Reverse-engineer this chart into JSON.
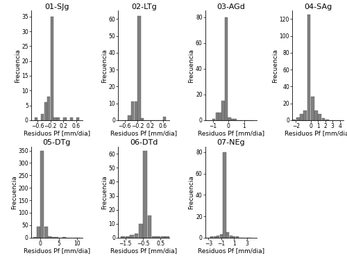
{
  "panels": [
    {
      "title": "01-SJg",
      "xlim": [
        -0.8,
        0.8
      ],
      "ylim": [
        0,
        37
      ],
      "yticks": [
        0,
        5,
        10,
        15,
        20,
        25,
        30,
        35
      ],
      "xticks": [
        -0.6,
        -0.2,
        0.2,
        0.6
      ],
      "bins_centers": [
        -0.65,
        -0.55,
        -0.45,
        -0.35,
        -0.25,
        -0.15,
        -0.05,
        0.05,
        0.15,
        0.25,
        0.35,
        0.45,
        0.55,
        0.65
      ],
      "bin_counts": [
        1,
        0,
        2,
        6,
        8,
        35,
        1,
        1,
        0,
        1,
        0,
        1,
        0,
        1
      ],
      "bin_width": 0.1
    },
    {
      "title": "02-LTg",
      "xlim": [
        -0.8,
        0.8
      ],
      "ylim": [
        0,
        65
      ],
      "yticks": [
        0,
        10,
        20,
        30,
        40,
        50,
        60
      ],
      "xticks": [
        -0.6,
        -0.2,
        0.2,
        0.6
      ],
      "bins_centers": [
        -0.65,
        -0.55,
        -0.45,
        -0.35,
        -0.25,
        -0.15,
        -0.05,
        0.05,
        0.15,
        0.25,
        0.35,
        0.45,
        0.55,
        0.65
      ],
      "bin_counts": [
        0,
        0,
        3,
        11,
        11,
        62,
        1,
        0,
        0,
        0,
        0,
        0,
        0,
        2
      ],
      "bin_width": 0.1
    },
    {
      "title": "03-AGd",
      "xlim": [
        -1.5,
        1.8
      ],
      "ylim": [
        0,
        85
      ],
      "yticks": [
        0,
        20,
        40,
        60,
        80
      ],
      "xticks": [
        -1.0,
        0.0,
        1.0
      ],
      "bins_centers": [
        -1.35,
        -1.15,
        -0.95,
        -0.75,
        -0.55,
        -0.35,
        -0.15,
        0.05,
        0.25,
        0.45,
        0.65,
        0.85,
        1.05,
        1.25,
        1.45
      ],
      "bin_counts": [
        0,
        0,
        1,
        6,
        6,
        15,
        80,
        2,
        1,
        1,
        0,
        0,
        0,
        0,
        0
      ],
      "bin_width": 0.2
    },
    {
      "title": "04-SAg",
      "xlim": [
        -2.5,
        4.5
      ],
      "ylim": [
        0,
        130
      ],
      "yticks": [
        0,
        20,
        40,
        60,
        80,
        100,
        120
      ],
      "xticks": [
        -2,
        0,
        1,
        2,
        3,
        4
      ],
      "bins_centers": [
        -2.25,
        -1.75,
        -1.25,
        -0.75,
        -0.25,
        0.25,
        0.75,
        1.25,
        1.75,
        2.25,
        2.75,
        3.25,
        3.75
      ],
      "bin_counts": [
        1,
        3,
        7,
        11,
        125,
        28,
        11,
        7,
        2,
        1,
        0,
        0,
        0
      ],
      "bin_width": 0.5
    },
    {
      "title": "05-DTg",
      "xlim": [
        -2.5,
        11.5
      ],
      "ylim": [
        0,
        365
      ],
      "yticks": [
        0,
        50,
        100,
        150,
        200,
        250,
        300,
        350
      ],
      "xticks": [
        0,
        5,
        10
      ],
      "bins_centers": [
        -1.5,
        -0.5,
        0.5,
        1.5,
        2.5,
        3.5,
        4.5,
        5.5,
        6.5,
        7.5,
        8.5,
        9.5,
        10.5
      ],
      "bin_counts": [
        2,
        45,
        350,
        45,
        5,
        2,
        1,
        0,
        1,
        0,
        0,
        0,
        0
      ],
      "bin_width": 1.0
    },
    {
      "title": "06-DTd",
      "xlim": [
        -1.9,
        1.0
      ],
      "ylim": [
        0,
        65
      ],
      "yticks": [
        0,
        10,
        20,
        30,
        40,
        50,
        60
      ],
      "xticks": [
        -1.5,
        -0.5,
        0.5
      ],
      "bins_centers": [
        -1.625,
        -1.375,
        -1.125,
        -0.875,
        -0.625,
        -0.375,
        -0.125,
        0.125,
        0.375,
        0.625,
        0.875
      ],
      "bin_counts": [
        1,
        1,
        2,
        3,
        10,
        62,
        16,
        1,
        1,
        1,
        1
      ],
      "bin_width": 0.25
    },
    {
      "title": "07-NEg",
      "xlim": [
        -3.5,
        4.5
      ],
      "ylim": [
        0,
        85
      ],
      "yticks": [
        0,
        20,
        40,
        60,
        80
      ],
      "xticks": [
        -3,
        -1,
        1,
        3
      ],
      "bins_centers": [
        -3.0,
        -2.5,
        -2.0,
        -1.5,
        -1.0,
        -0.5,
        0.0,
        0.5,
        1.0,
        1.5,
        2.0,
        2.5,
        3.0,
        3.5
      ],
      "bin_counts": [
        0,
        1,
        1,
        2,
        3,
        80,
        5,
        2,
        1,
        1,
        0,
        0,
        0,
        0
      ],
      "bin_width": 0.5
    }
  ],
  "bar_color": "#808080",
  "bar_edge_color": "#505050",
  "ylabel": "Frecuencia",
  "xlabel": "Residuos Pf [mm/dia]",
  "background_color": "#ffffff",
  "title_fontsize": 8,
  "axis_label_fontsize": 6.5,
  "tick_fontsize": 5.5
}
